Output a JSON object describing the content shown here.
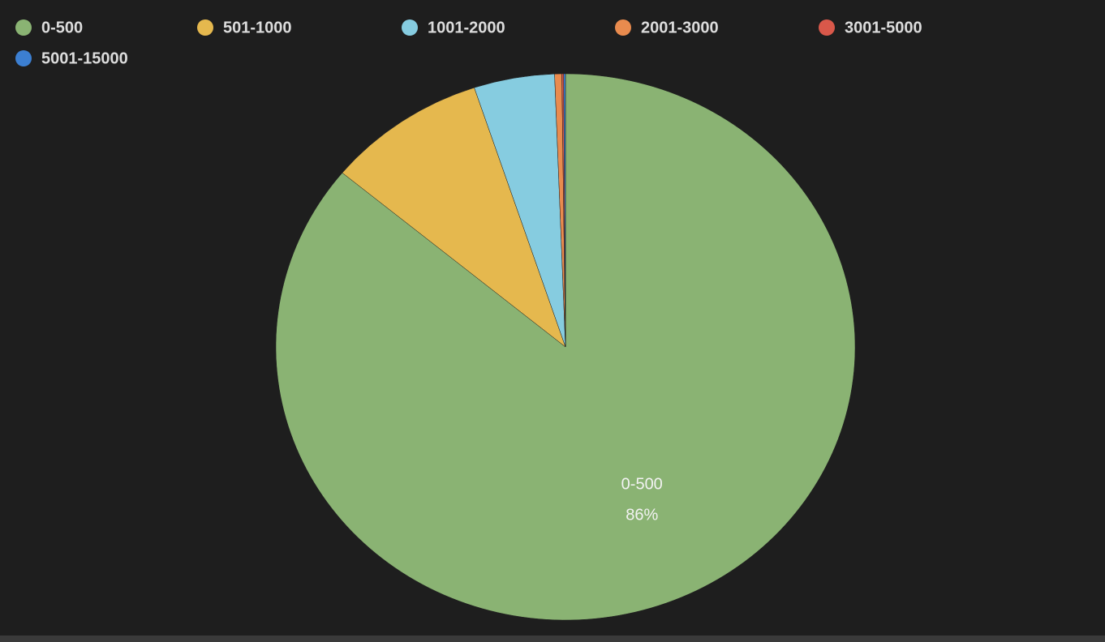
{
  "chart_data": {
    "type": "pie",
    "categories": [
      "0-500",
      "501-1000",
      "1001-2000",
      "2001-3000",
      "3001-5000",
      "5001-15000"
    ],
    "values": [
      86,
      8.9,
      4.5,
      0.4,
      0.1,
      0.1
    ],
    "value_labels": [
      "86%",
      null,
      null,
      null,
      null,
      null
    ],
    "colors": [
      "#8ab373",
      "#e5b84e",
      "#86cce0",
      "#e98b4e",
      "#d9584a",
      "#3c7fd1"
    ],
    "legend": "top-left"
  }
}
